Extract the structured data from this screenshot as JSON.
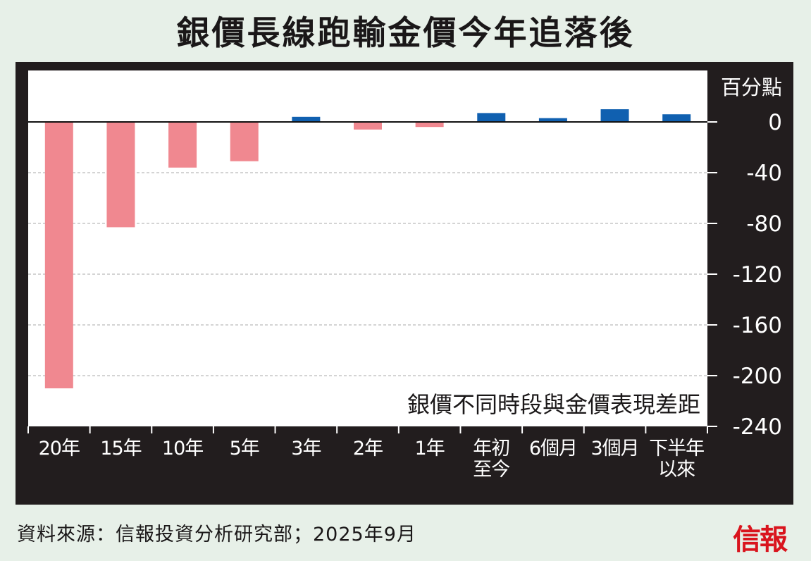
{
  "title": "銀價長線跑輸金價今年追落後",
  "source": "資料來源：信報投資分析研究部；2025年9月",
  "logo": "信報",
  "colors": {
    "negative": "#f08890",
    "positive": "#1060b0",
    "panel": "#221d1e",
    "plot_bg": "#ffffff",
    "background": "#e7f0e8"
  },
  "chart_data": {
    "type": "bar",
    "title": "銀價長線跑輸金價今年追落後",
    "annotation": "銀價不同時段與金價表現差距",
    "ylabel": "百分點",
    "categories": [
      "20年",
      "15年",
      "10年",
      "5年",
      "3年",
      "2年",
      "1年",
      "年初\n至今",
      "6個月",
      "3個月",
      "下半年\n以來"
    ],
    "values": [
      -210,
      -83,
      -36,
      -31,
      4,
      -6,
      -4,
      7,
      3,
      10,
      6
    ],
    "ylim": [
      -240,
      20
    ],
    "yticks": [
      0,
      -40,
      -80,
      -120,
      -160,
      -200,
      -240
    ],
    "grid": true,
    "y_axis_side": "right"
  }
}
